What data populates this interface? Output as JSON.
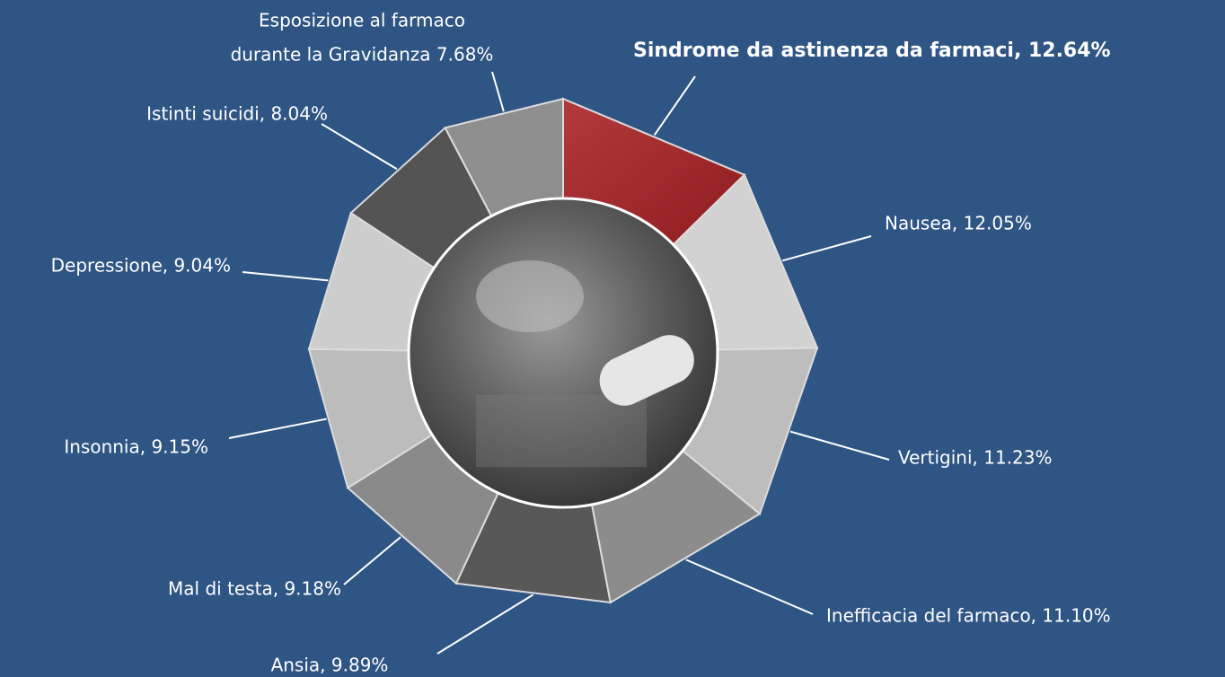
{
  "chart_data": {
    "type": "pie",
    "value_labels": [
      "Sindrome da astinenza da farmaci, 12.64%",
      "Nausea, 12.05%",
      "Vertigini, 11.23%",
      "Inefficacia del farmaco, 11.10%",
      "Ansia, 9.89%",
      "Mal di testa, 9.18%",
      "Insonnia, 9.15%",
      "Depressione, 9.04%",
      "Istinti suicidi, 8.04%",
      [
        "Esposizione al farmaco",
        "durante la Gravidanza 7.68%"
      ]
    ],
    "values": [
      12.64,
      12.05,
      11.23,
      11.1,
      9.89,
      9.18,
      9.15,
      9.04,
      8.04,
      7.68
    ],
    "colors": [
      "#a3262a",
      "#d2d2d2",
      "#bdbdbd",
      "#8c8c8c",
      "#585858",
      "#8a8a8a",
      "#bcbcbc",
      "#cdcdcd",
      "#545454",
      "#8e8e8e"
    ]
  }
}
